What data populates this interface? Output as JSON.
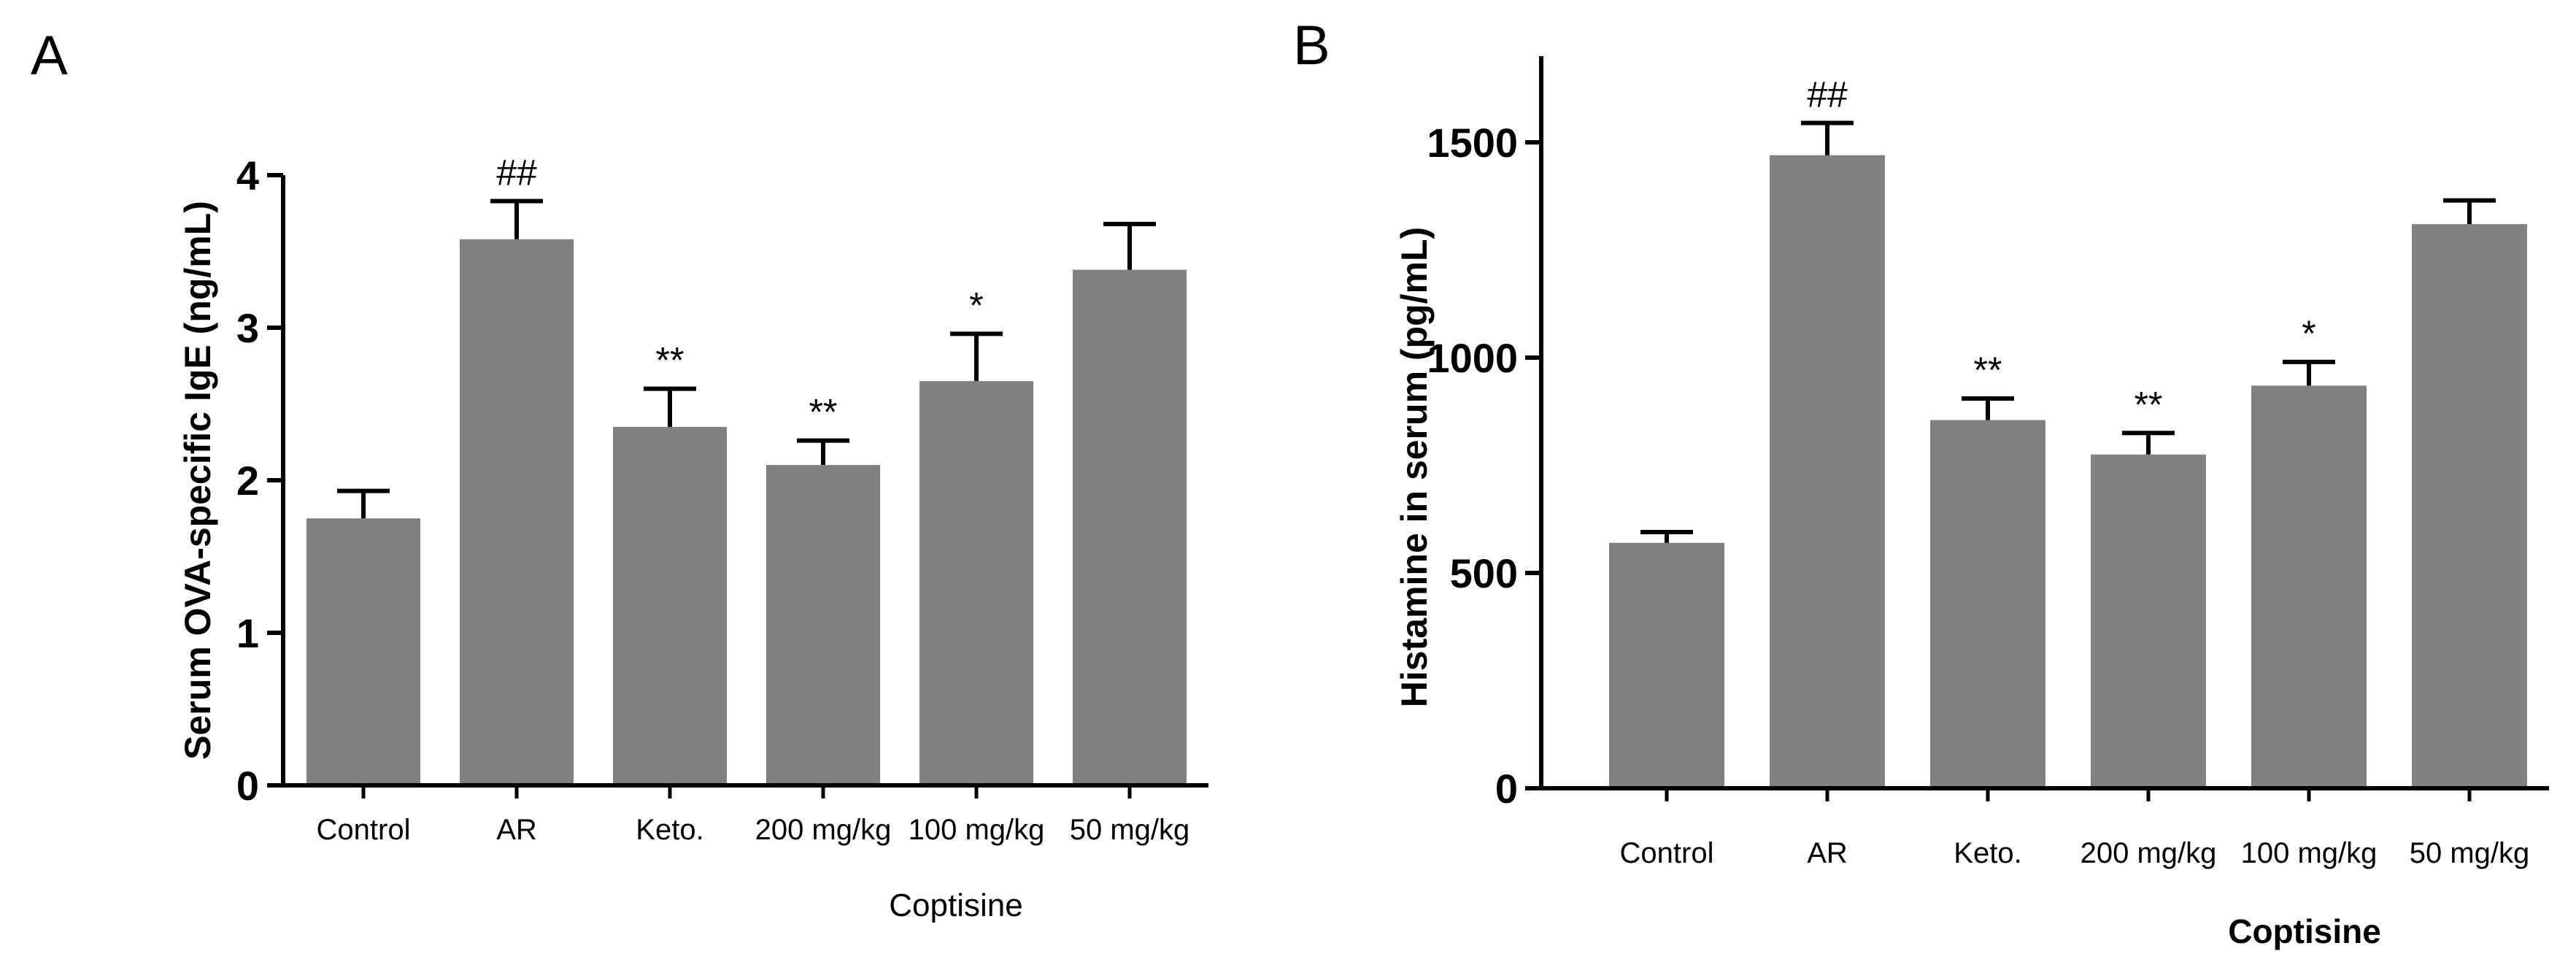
{
  "chart_data": [
    {
      "panel": "A",
      "type": "bar",
      "categories": [
        "Control",
        "AR",
        "Keto.",
        "200 mg/kg",
        "100 mg/kg",
        "50 mg/kg"
      ],
      "values": [
        1.75,
        3.58,
        2.35,
        2.1,
        2.65,
        3.38
      ],
      "errors": [
        0.18,
        0.25,
        0.25,
        0.16,
        0.31,
        0.3
      ],
      "significance": [
        "",
        "##",
        "**",
        "**",
        "*",
        ""
      ],
      "group_label": "Coptisine",
      "ylabel": "Serum OVA-specific IgE (ng/mL)",
      "ylim": [
        0,
        4
      ],
      "yticks": [
        0,
        1,
        2,
        3,
        4
      ],
      "bar_color": "#808080"
    },
    {
      "panel": "B",
      "type": "bar",
      "categories": [
        "Control",
        "AR",
        "Keto.",
        "200 mg/kg",
        "100 mg/kg",
        "50 mg/kg"
      ],
      "values": [
        570,
        1470,
        855,
        775,
        935,
        1310
      ],
      "errors": [
        25,
        75,
        50,
        50,
        55,
        55
      ],
      "significance": [
        "",
        "##",
        "**",
        "**",
        "*",
        ""
      ],
      "group_label": "Coptisine",
      "ylabel": "Histamine in serum (pg/mL)",
      "ylim": [
        0,
        1700
      ],
      "yticks": [
        0,
        500,
        1000,
        1500
      ],
      "bar_color": "#808080"
    }
  ]
}
